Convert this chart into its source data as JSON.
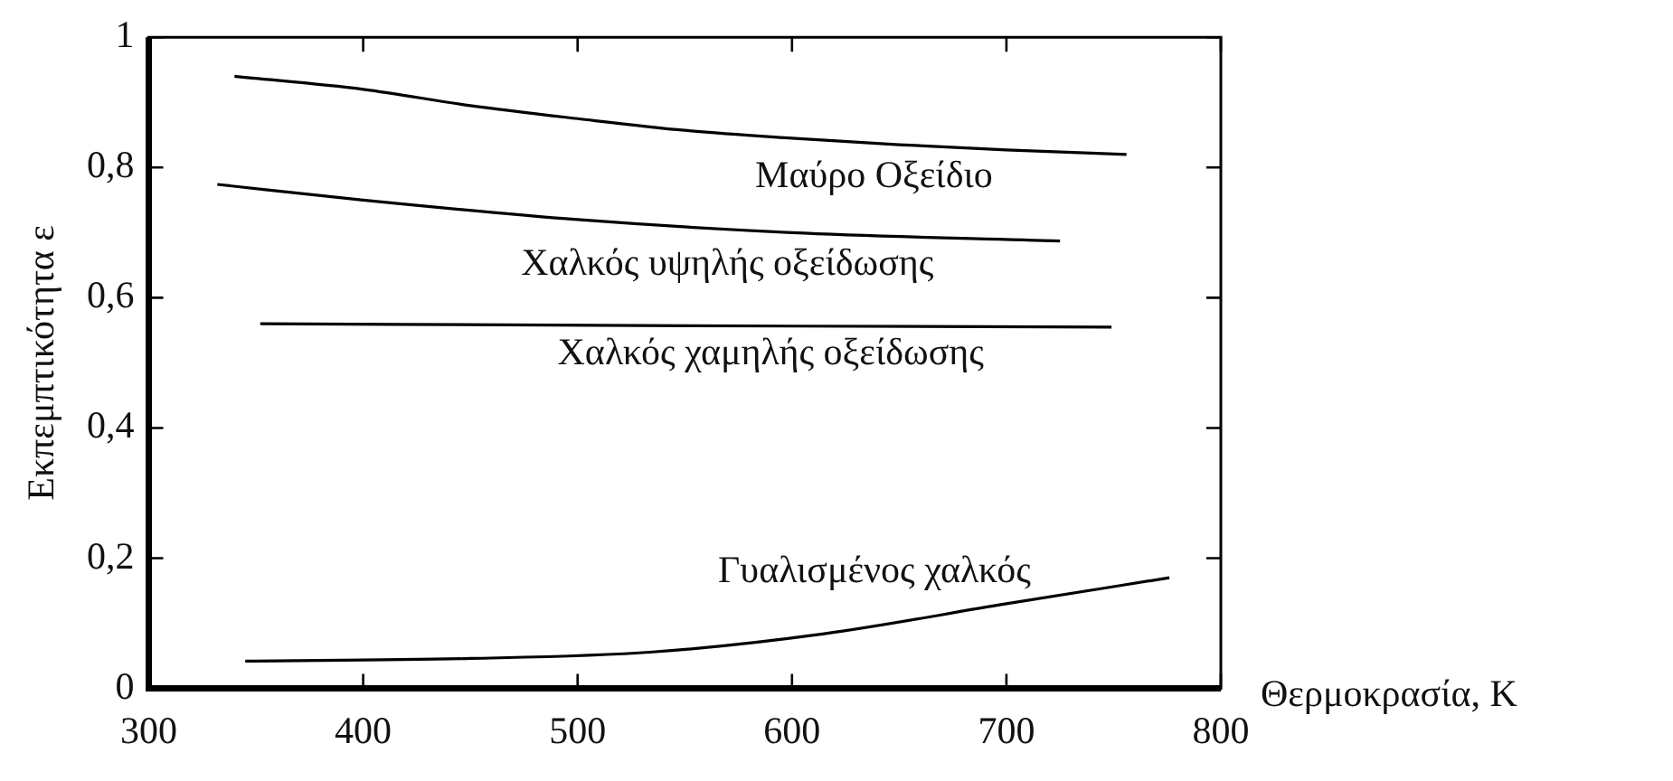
{
  "chart_data": {
    "type": "line",
    "xlabel": "Θερμοκρασία, K",
    "ylabel": "Εκπεμπτικότητα ε",
    "series": [
      {
        "name": "Μαύρο Οξείδιο",
        "color": "#000000",
        "x": [
          340,
          400,
          450,
          500,
          550,
          600,
          650,
          700,
          756
        ],
        "values": [
          0.94,
          0.92,
          0.895,
          0.875,
          0.857,
          0.845,
          0.835,
          0.827,
          0.82
        ]
      },
      {
        "name": "Χαλκός υψηλής οξείδωσης",
        "color": "#000000",
        "x": [
          332,
          400,
          500,
          600,
          725
        ],
        "values": [
          0.774,
          0.75,
          0.72,
          0.7,
          0.687
        ]
      },
      {
        "name": "Χαλκός χαμηλής οξείδωσης",
        "color": "#000000",
        "x": [
          352,
          550,
          749
        ],
        "values": [
          0.56,
          0.557,
          0.555
        ]
      },
      {
        "name": "Γυαλισμένος χαλκός",
        "color": "#000000",
        "x": [
          345,
          450,
          535,
          615,
          700,
          776
        ],
        "values": [
          0.042,
          0.046,
          0.056,
          0.084,
          0.13,
          0.17
        ]
      }
    ],
    "xlim": [
      300,
      800
    ],
    "xticks": [
      300,
      400,
      500,
      600,
      700,
      800
    ],
    "ylim": [
      0,
      1
    ],
    "yticks": [
      0,
      {
        "value": 0.2,
        "label": "0,2"
      },
      {
        "value": 0.4,
        "label": "0,4"
      },
      {
        "value": 0.6,
        "label": "0,6"
      },
      {
        "value": 0.8,
        "label": "0,8"
      },
      1
    ],
    "grid": false,
    "legend": false,
    "marker": "none",
    "line_style": "solid"
  }
}
